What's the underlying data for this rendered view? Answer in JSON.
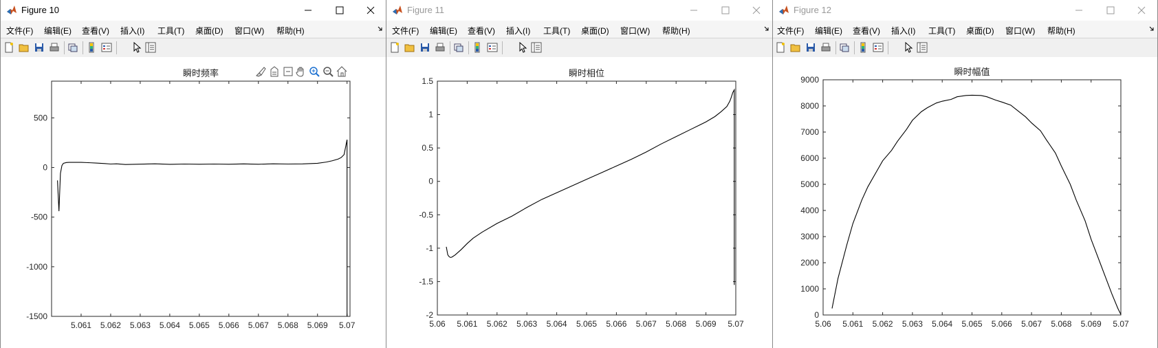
{
  "windows": [
    {
      "title": "Figure 10",
      "active": true,
      "menu": [
        "文件(F)",
        "编辑(E)",
        "查看(V)",
        "插入(I)",
        "工具(T)",
        "桌面(D)",
        "窗口(W)",
        "帮助(H)"
      ],
      "axes_toolbar": [
        "brush-icon",
        "data-tips-icon",
        "restore-view-icon",
        "pan-icon",
        "zoom-in-icon",
        "zoom-out-icon",
        "home-icon"
      ],
      "chart_data": {
        "type": "line",
        "title": "瞬时频率",
        "xlim": [
          5.06,
          5.0701
        ],
        "ylim": [
          -1500,
          870
        ],
        "xticks": [
          5.061,
          5.062,
          5.063,
          5.064,
          5.065,
          5.066,
          5.067,
          5.068,
          5.069,
          5.07
        ],
        "xtick_labels": [
          "5.061",
          "5.062",
          "5.063",
          "5.064",
          "5.065",
          "5.066",
          "5.067",
          "5.068",
          "5.069",
          "5.07"
        ],
        "yticks": [
          -1500,
          -1000,
          -500,
          0,
          500
        ],
        "ytick_labels": [
          "-1500",
          "-1000",
          "-500",
          "0",
          "500"
        ],
        "color": "#000000",
        "series": [
          {
            "x": [
              5.0602,
              5.06025,
              5.0603,
              5.06035,
              5.0604,
              5.0605,
              5.0606,
              5.0608,
              5.061,
              5.0613,
              5.0615,
              5.0618,
              5.062,
              5.0622,
              5.0625,
              5.063,
              5.0635,
              5.064,
              5.0645,
              5.065,
              5.0655,
              5.066,
              5.0665,
              5.067,
              5.0675,
              5.068,
              5.0685,
              5.069,
              5.0693,
              5.0695,
              5.0697,
              5.0698,
              5.0699,
              5.07,
              5.07,
              5.07
            ],
            "y": [
              -130,
              -440,
              -60,
              20,
              42,
              50,
              52,
              52,
              52,
              48,
              45,
              40,
              35,
              37,
              30,
              34,
              37,
              32,
              35,
              33,
              35,
              33,
              36,
              33,
              37,
              35,
              36,
              42,
              55,
              68,
              85,
              100,
              130,
              280,
              -500,
              -1500
            ]
          }
        ]
      }
    },
    {
      "title": "Figure 11",
      "active": false,
      "menu": [
        "文件(F)",
        "编辑(E)",
        "查看(V)",
        "插入(I)",
        "工具(T)",
        "桌面(D)",
        "窗口(W)",
        "帮助(H)"
      ],
      "chart_data": {
        "type": "line",
        "title": "瞬时相位",
        "xlim": [
          5.06,
          5.07
        ],
        "ylim": [
          -2,
          1.5
        ],
        "xticks": [
          5.06,
          5.061,
          5.062,
          5.063,
          5.064,
          5.065,
          5.066,
          5.067,
          5.068,
          5.069,
          5.07
        ],
        "xtick_labels": [
          "5.06",
          "5.061",
          "5.062",
          "5.063",
          "5.064",
          "5.065",
          "5.066",
          "5.067",
          "5.068",
          "5.069",
          "5.07"
        ],
        "yticks": [
          -2,
          -1.5,
          -1,
          -0.5,
          0,
          0.5,
          1,
          1.5
        ],
        "ytick_labels": [
          "-2",
          "-1.5",
          "-1",
          "-0.5",
          "0",
          "0.5",
          "1",
          "1.5"
        ],
        "color": "#000000",
        "series": [
          {
            "x": [
              5.0603,
              5.06035,
              5.0604,
              5.06045,
              5.0605,
              5.0606,
              5.0608,
              5.061,
              5.0612,
              5.0615,
              5.062,
              5.0625,
              5.063,
              5.0635,
              5.064,
              5.0645,
              5.065,
              5.0655,
              5.066,
              5.0665,
              5.067,
              5.0675,
              5.068,
              5.0685,
              5.069,
              5.0693,
              5.0695,
              5.0697,
              5.0698,
              5.06985,
              5.0699,
              5.06995,
              5.06995
            ],
            "y": [
              -0.98,
              -1.1,
              -1.13,
              -1.14,
              -1.13,
              -1.1,
              -1.02,
              -0.93,
              -0.85,
              -0.76,
              -0.63,
              -0.52,
              -0.39,
              -0.27,
              -0.17,
              -0.07,
              0.03,
              0.13,
              0.23,
              0.33,
              0.44,
              0.56,
              0.67,
              0.78,
              0.89,
              0.97,
              1.04,
              1.12,
              1.2,
              1.26,
              1.33,
              1.37,
              -1.55
            ]
          }
        ]
      }
    },
    {
      "title": "Figure 12",
      "active": false,
      "menu": [
        "文件(F)",
        "编辑(E)",
        "查看(V)",
        "插入(I)",
        "工具(T)",
        "桌面(D)",
        "窗口(W)",
        "帮助(H)"
      ],
      "chart_data": {
        "type": "line",
        "title": "瞬时幅值",
        "xlim": [
          5.06,
          5.07
        ],
        "ylim": [
          0,
          9000
        ],
        "xticks": [
          5.06,
          5.061,
          5.062,
          5.063,
          5.064,
          5.065,
          5.066,
          5.067,
          5.068,
          5.069,
          5.07
        ],
        "xtick_labels": [
          "5.06",
          "5.061",
          "5.062",
          "5.063",
          "5.064",
          "5.065",
          "5.066",
          "5.067",
          "5.068",
          "5.069",
          "5.07"
        ],
        "yticks": [
          0,
          1000,
          2000,
          3000,
          4000,
          5000,
          6000,
          7000,
          8000,
          9000
        ],
        "ytick_labels": [
          "0",
          "1000",
          "2000",
          "3000",
          "4000",
          "5000",
          "6000",
          "7000",
          "8000",
          "9000"
        ],
        "color": "#000000",
        "series": [
          {
            "x": [
              5.0603,
              5.0605,
              5.0608,
              5.061,
              5.0613,
              5.0615,
              5.0618,
              5.062,
              5.0623,
              5.0625,
              5.0628,
              5.063,
              5.0633,
              5.0635,
              5.0638,
              5.064,
              5.0643,
              5.0645,
              5.0648,
              5.065,
              5.0653,
              5.0655,
              5.0658,
              5.066,
              5.0663,
              5.0665,
              5.0668,
              5.067,
              5.0673,
              5.0675,
              5.0678,
              5.068,
              5.0683,
              5.0685,
              5.0688,
              5.069,
              5.0693,
              5.0695,
              5.0697,
              5.0699,
              5.07
            ],
            "y": [
              250,
              1400,
              2700,
              3500,
              4400,
              4900,
              5500,
              5900,
              6300,
              6650,
              7100,
              7450,
              7780,
              7930,
              8110,
              8180,
              8250,
              8350,
              8400,
              8410,
              8400,
              8350,
              8220,
              8150,
              8030,
              7850,
              7580,
              7350,
              7050,
              6700,
              6200,
              5700,
              5000,
              4400,
              3600,
              2900,
              2000,
              1400,
              800,
              250,
              20
            ]
          }
        ]
      }
    }
  ]
}
